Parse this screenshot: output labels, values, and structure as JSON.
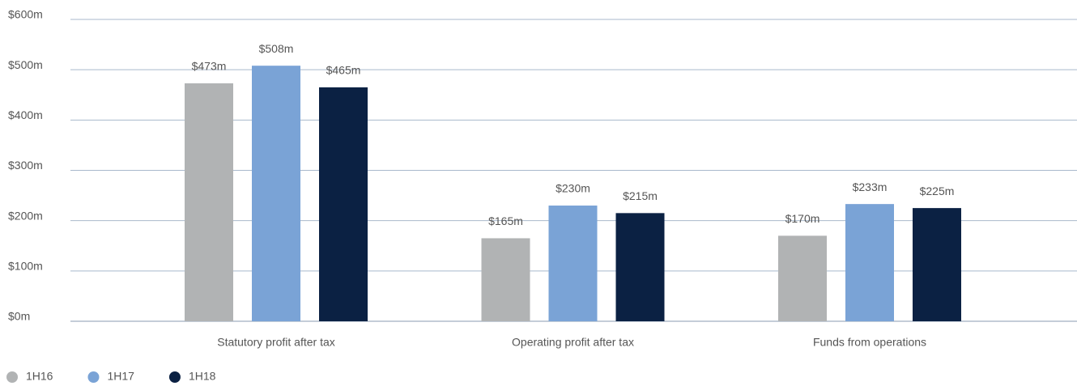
{
  "chart_data": {
    "type": "bar",
    "categories": [
      "Statutory profit after tax",
      "Operating profit after tax",
      "Funds from operations"
    ],
    "series": [
      {
        "name": "1H16",
        "color": "#b1b3b4",
        "values": [
          473,
          165,
          170
        ],
        "value_labels": [
          "$473m",
          "$165m",
          "$170m"
        ]
      },
      {
        "name": "1H17",
        "color": "#7aa3d6",
        "values": [
          508,
          230,
          233
        ],
        "value_labels": [
          "$508m",
          "$230m",
          "$233m"
        ]
      },
      {
        "name": "1H18",
        "color": "#0b2143",
        "values": [
          465,
          215,
          225
        ],
        "value_labels": [
          "$465m",
          "$215m",
          "$225m"
        ]
      }
    ],
    "ylim": [
      0,
      600
    ],
    "yticks": [
      {
        "value": 0,
        "label": "$0m"
      },
      {
        "value": 100,
        "label": "$100m"
      },
      {
        "value": 200,
        "label": "$200m"
      },
      {
        "value": 300,
        "label": "$300m"
      },
      {
        "value": 400,
        "label": "$400m"
      },
      {
        "value": 500,
        "label": "$500m"
      },
      {
        "value": 600,
        "label": "$600m"
      }
    ],
    "grid": true,
    "legend": "bottom-left"
  }
}
